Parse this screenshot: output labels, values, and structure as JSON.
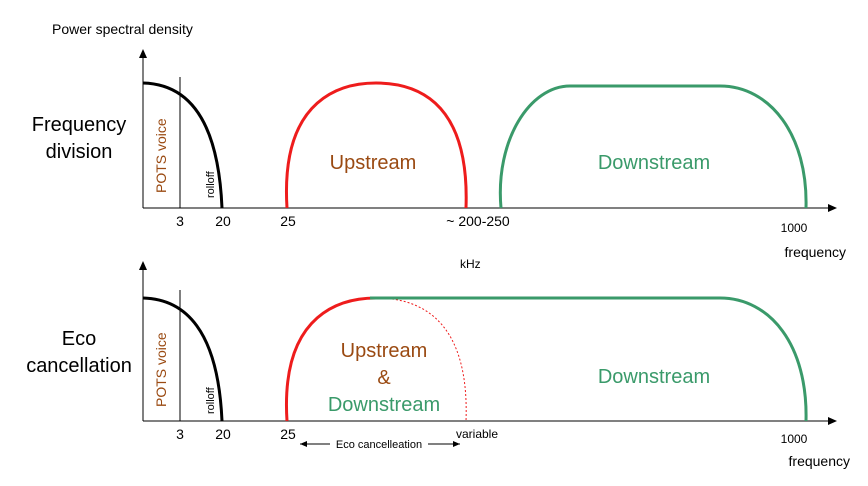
{
  "diagram": {
    "y_axis_title": "Power spectral density",
    "unit_label": "kHz",
    "colors": {
      "pots": "#000000",
      "upstream": "#ee1c1c",
      "downstream": "#3a9a6a",
      "text_brown": "#9a4a12"
    },
    "panels": [
      {
        "mode_line1": "Frequency",
        "mode_line2": "division",
        "pots_label": "POTS voice",
        "rolloff_label": "rolloff",
        "upstream_label": "Upstream",
        "downstream_label": "Downstream",
        "ticks": {
          "t3": "3",
          "t20": "20",
          "t25": "25",
          "t200": "~ 200-250",
          "t1000": "1000"
        },
        "x_axis_label": "frequency"
      },
      {
        "mode_line1": "Eco",
        "mode_line2": "cancellation",
        "pots_label": "POTS voice",
        "rolloff_label": "rolloff",
        "up_down_line1": "Upstream",
        "up_down_line2": "&",
        "up_down_line3": "Downstream",
        "downstream_label": "Downstream",
        "ticks": {
          "t3": "3",
          "t20": "20",
          "t25": "25",
          "variable": "variable",
          "t1000": "1000"
        },
        "eco_range_label": "Eco cancelleation",
        "x_axis_label": "frequency"
      }
    ]
  }
}
